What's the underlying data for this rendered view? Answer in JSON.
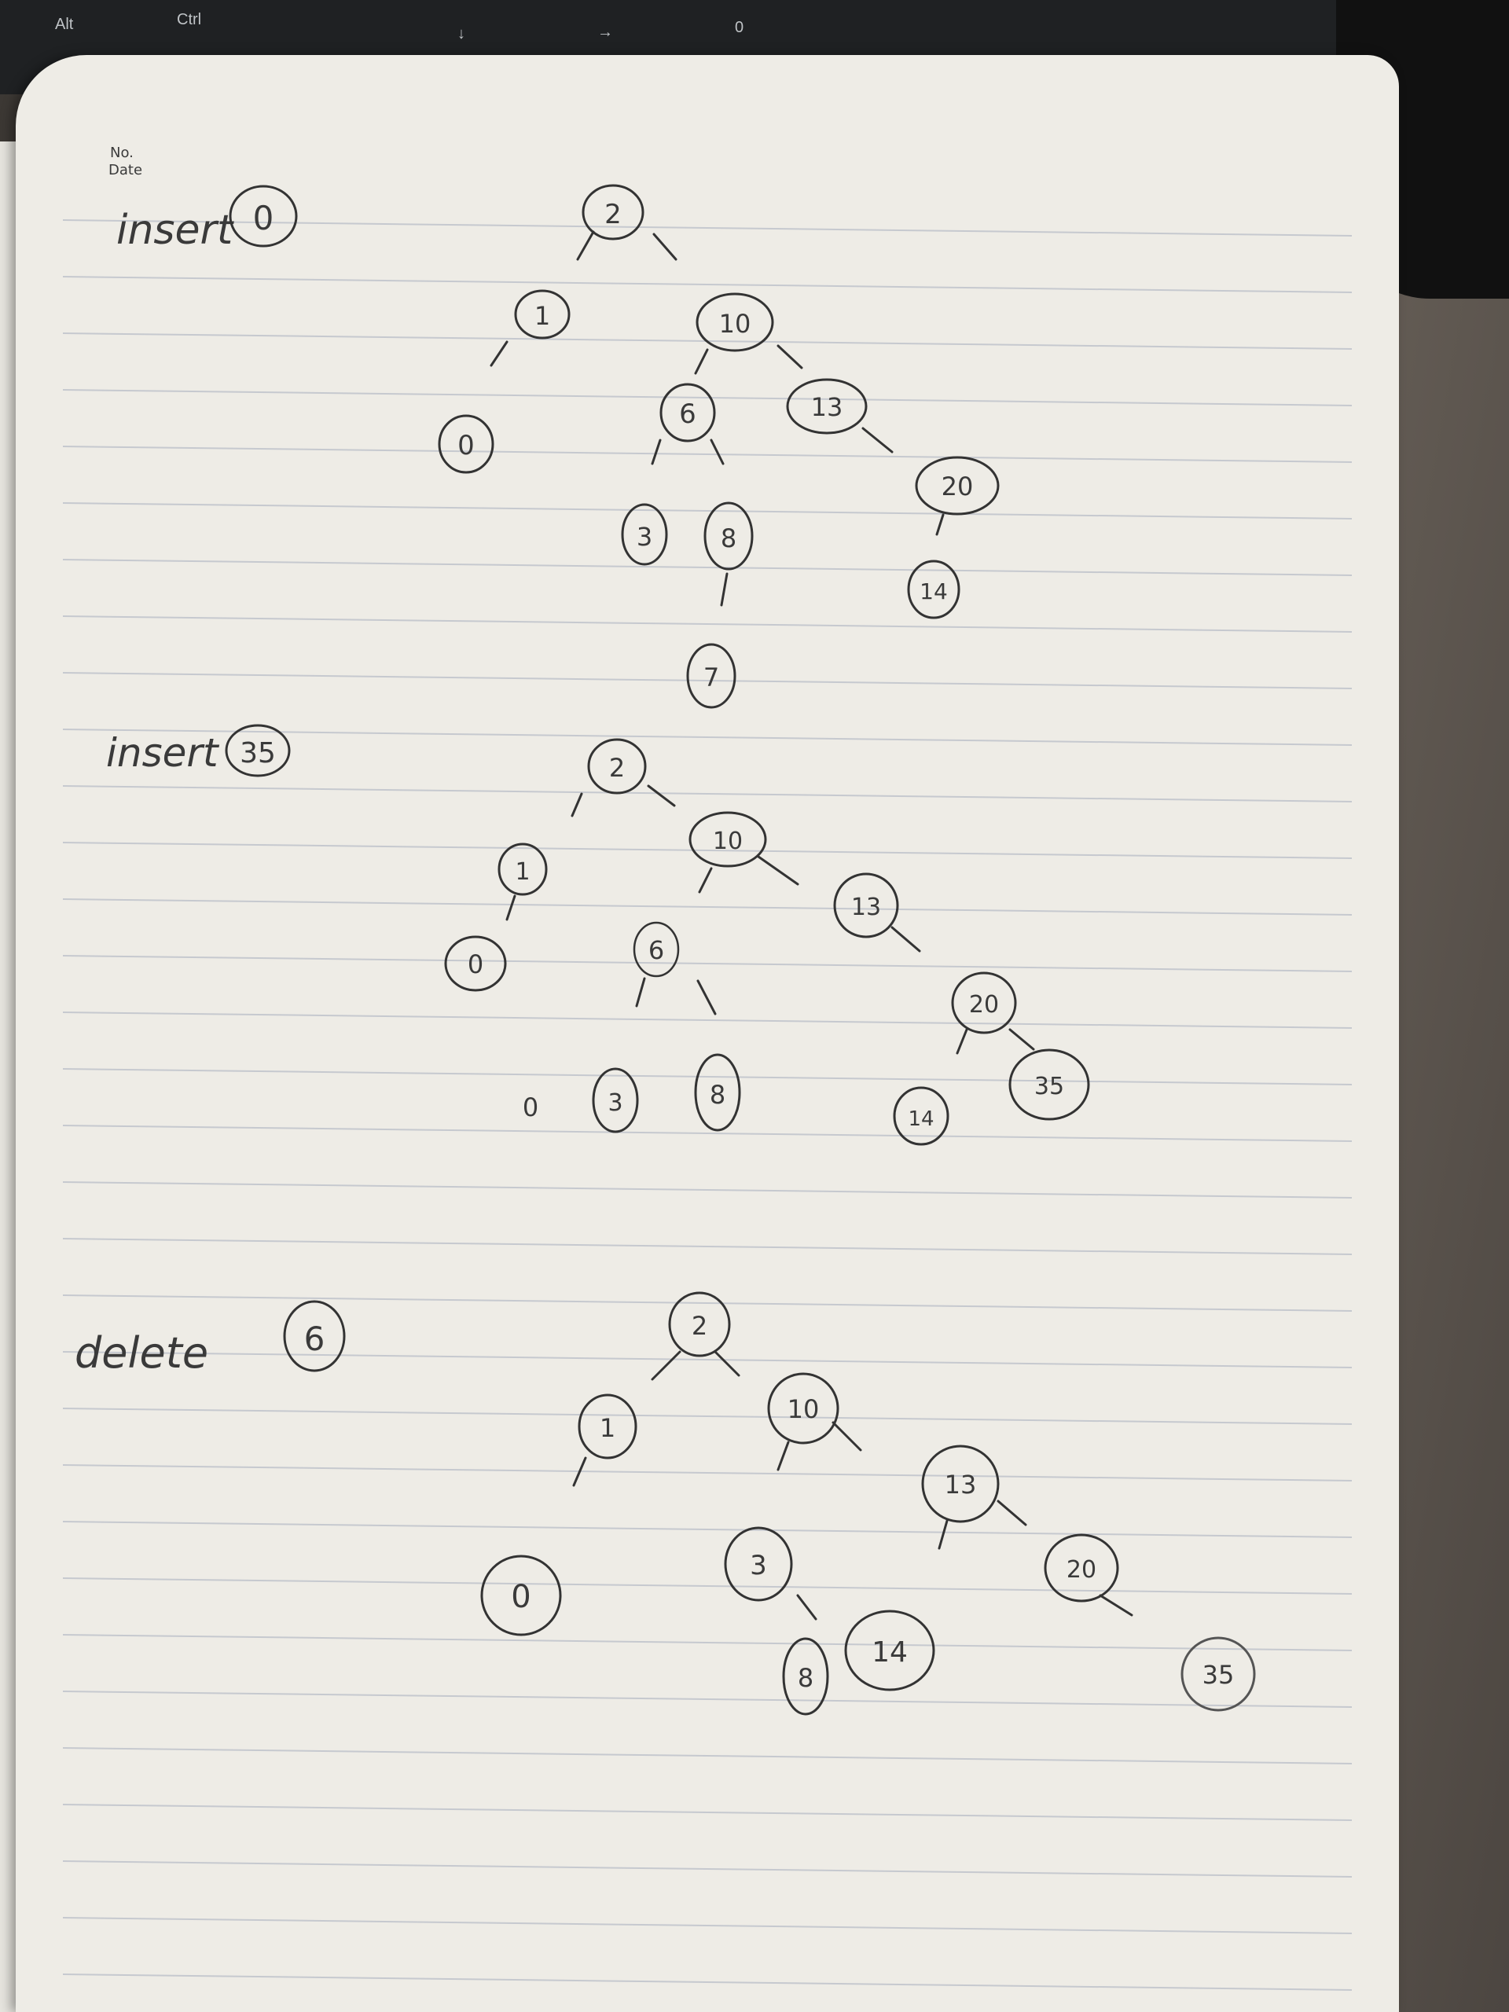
{
  "keyboard": {
    "alt_label": "Alt",
    "ctrl_label": "Ctrl",
    "down_arrow": "↓",
    "right_arrow": "→",
    "zero_key": "0"
  },
  "notebook": {
    "no_label": "No.",
    "date_label": "Date"
  },
  "section1": {
    "label": "insert",
    "circled": "0",
    "nodes": [
      "2",
      "1",
      "10",
      "0",
      "6",
      "13",
      "3",
      "8",
      "20",
      "14",
      "7"
    ]
  },
  "section2": {
    "label": "insert",
    "circled": "35",
    "nodes": [
      "2",
      "1",
      "10",
      "0",
      "6",
      "13",
      "20",
      "0",
      "3",
      "8",
      "14",
      "35"
    ]
  },
  "section3": {
    "label": "delete",
    "circled": "6",
    "nodes": [
      "2",
      "1",
      "10",
      "13",
      "0",
      "3",
      "20",
      "8",
      "14",
      "35"
    ]
  }
}
